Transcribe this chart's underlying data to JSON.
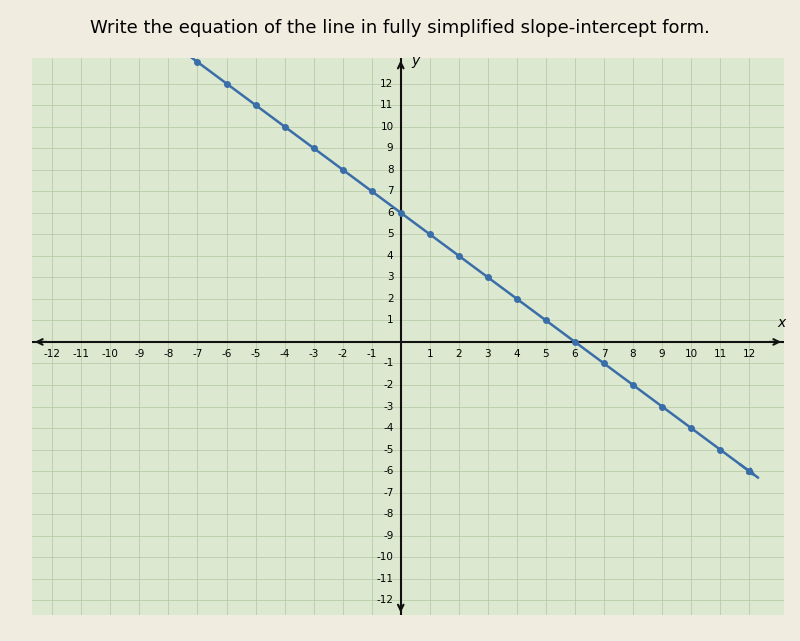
{
  "title": "Write the equation of the line in fully simplified slope-intercept form.",
  "title_fontsize": 13,
  "background_color": "#f0ece0",
  "plot_background_color": "#dde8d0",
  "grid_color": "#b0c8a0",
  "axis_color": "#111111",
  "line_color": "#3a6ea8",
  "line_width": 1.8,
  "marker_size": 4,
  "slope": -1,
  "intercept": 6,
  "x_line_start": -7.3,
  "x_line_end": 12.3,
  "xlim": [
    -12.7,
    13.2
  ],
  "ylim": [
    -12.7,
    13.2
  ],
  "xticks": [
    -12,
    -11,
    -10,
    -9,
    -8,
    -7,
    -6,
    -5,
    -4,
    -3,
    -2,
    -1,
    1,
    2,
    3,
    4,
    5,
    6,
    7,
    8,
    9,
    10,
    11,
    12
  ],
  "yticks": [
    -12,
    -11,
    -10,
    -9,
    -8,
    -7,
    -6,
    -5,
    -4,
    -3,
    -2,
    -1,
    1,
    2,
    3,
    4,
    5,
    6,
    7,
    8,
    9,
    10,
    11,
    12
  ],
  "tick_fontsize": 7.5,
  "figsize": [
    8.0,
    6.41
  ],
  "dpi": 100
}
